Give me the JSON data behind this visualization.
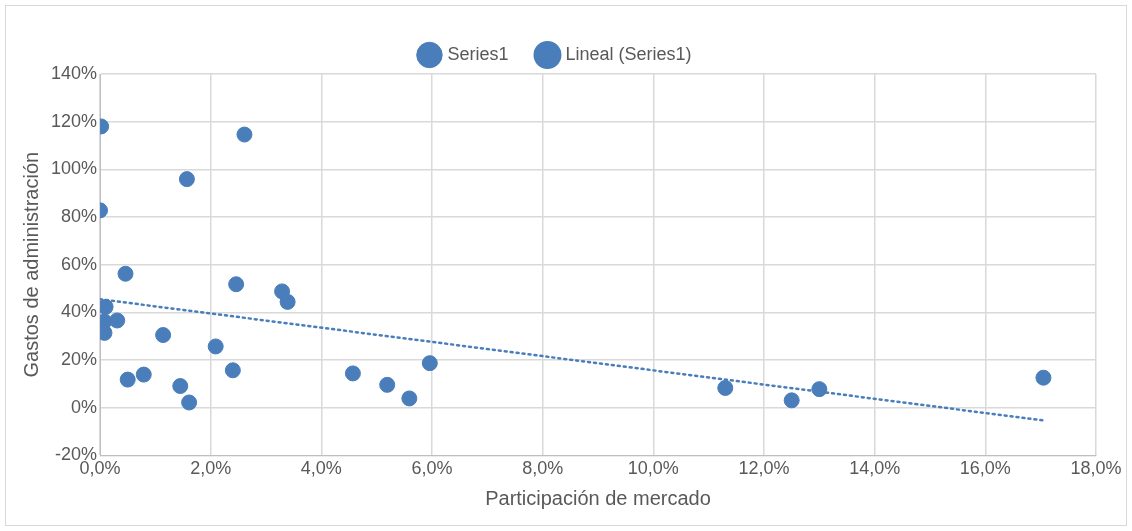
{
  "chart_data": {
    "type": "scatter",
    "xlabel": "Participación de mercado",
    "ylabel": "Gastos de administración",
    "series": [
      {
        "name": "Series1",
        "color": "#4a7ebb",
        "marker": "circle",
        "x": [
          0.02,
          0,
          1.57,
          2.61,
          0.46,
          2.46,
          3.29,
          3.39,
          0.1,
          0.08,
          0.31,
          0.08,
          1.14,
          2.09,
          2.4,
          4.57,
          5.96,
          0.79,
          0.5,
          1.45,
          5.19,
          5.59,
          1.61,
          11.3,
          12.5,
          13.0,
          17.05
        ],
        "values": [
          118,
          82.8,
          95.9,
          114.6,
          56.2,
          51.8,
          48.8,
          44.4,
          42.3,
          36.2,
          36.6,
          31.4,
          30.5,
          25.7,
          15.7,
          14.4,
          18.7,
          13.9,
          11.8,
          9.1,
          9.6,
          3.9,
          2.2,
          8.3,
          3.1,
          7.8,
          12.6
        ]
      },
      {
        "name": "Lineal (Series1)",
        "type": "line",
        "color": "#4a7ebb",
        "line_style": "dotted",
        "marker": "none",
        "x": [
          0,
          17.1
        ],
        "values": [
          45.5,
          -5.5
        ]
      }
    ],
    "xlim": [
      0,
      18
    ],
    "xticks": [
      {
        "value": 0,
        "label": "0,0%"
      },
      {
        "value": 2,
        "label": "2,0%"
      },
      {
        "value": 4,
        "label": "4,0%"
      },
      {
        "value": 6,
        "label": "6,0%"
      },
      {
        "value": 8,
        "label": "8,0%"
      },
      {
        "value": 10,
        "label": "10,0%"
      },
      {
        "value": 12,
        "label": "12,0%"
      },
      {
        "value": 14,
        "label": "14,0%"
      },
      {
        "value": 16,
        "label": "16,0%"
      },
      {
        "value": 18,
        "label": "18,0%"
      }
    ],
    "ylim": [
      -20,
      140
    ],
    "yticks": [
      {
        "value": -20,
        "label": "-20%"
      },
      {
        "value": 0,
        "label": "0%"
      },
      {
        "value": 20,
        "label": "20%"
      },
      {
        "value": 40,
        "label": "40%"
      },
      {
        "value": 60,
        "label": "60%"
      },
      {
        "value": 80,
        "label": "80%"
      },
      {
        "value": 100,
        "label": "100%"
      },
      {
        "value": 120,
        "label": "120%"
      },
      {
        "value": 140,
        "label": "140%"
      }
    ],
    "grid": true,
    "legend": "top"
  }
}
